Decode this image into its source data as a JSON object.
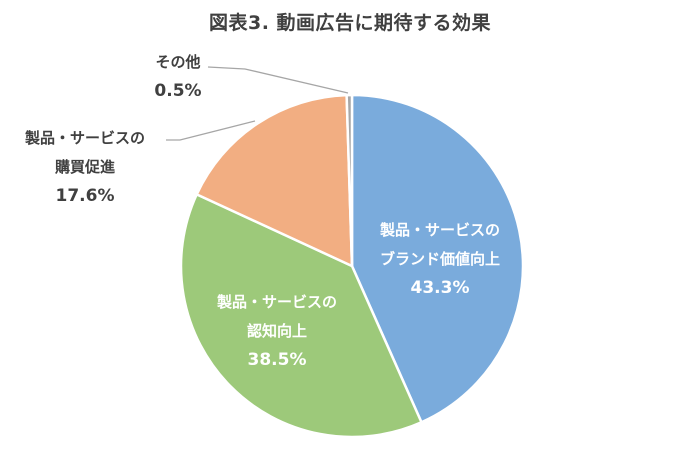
{
  "chart_data": {
    "type": "pie",
    "title": "図表3. 動画広告に期待する効果",
    "start_angle": "12 o'clock, clockwise",
    "categories": [
      "製品・サービスのブランド価値向上",
      "製品・サービスの認知向上",
      "製品・サービスの購買促進",
      "その他"
    ],
    "values": [
      43.3,
      38.5,
      17.6,
      0.5
    ],
    "unit": "%",
    "colors": [
      "#7aabdc",
      "#9dc97a",
      "#f2ae82",
      "#a6a6a6"
    ],
    "legend": "none (data labels on slices)",
    "labels": [
      {
        "line1": "製品・サービスの",
        "line2": "ブランド価値向上",
        "pct": "43.3%"
      },
      {
        "line1": "製品・サービスの",
        "line2": "認知向上",
        "pct": "38.5%"
      },
      {
        "line1": "製品・サービスの",
        "line2": "購買促進",
        "pct": "17.6%"
      },
      {
        "line1": "その他",
        "line2": "",
        "pct": "0.5%"
      }
    ]
  }
}
